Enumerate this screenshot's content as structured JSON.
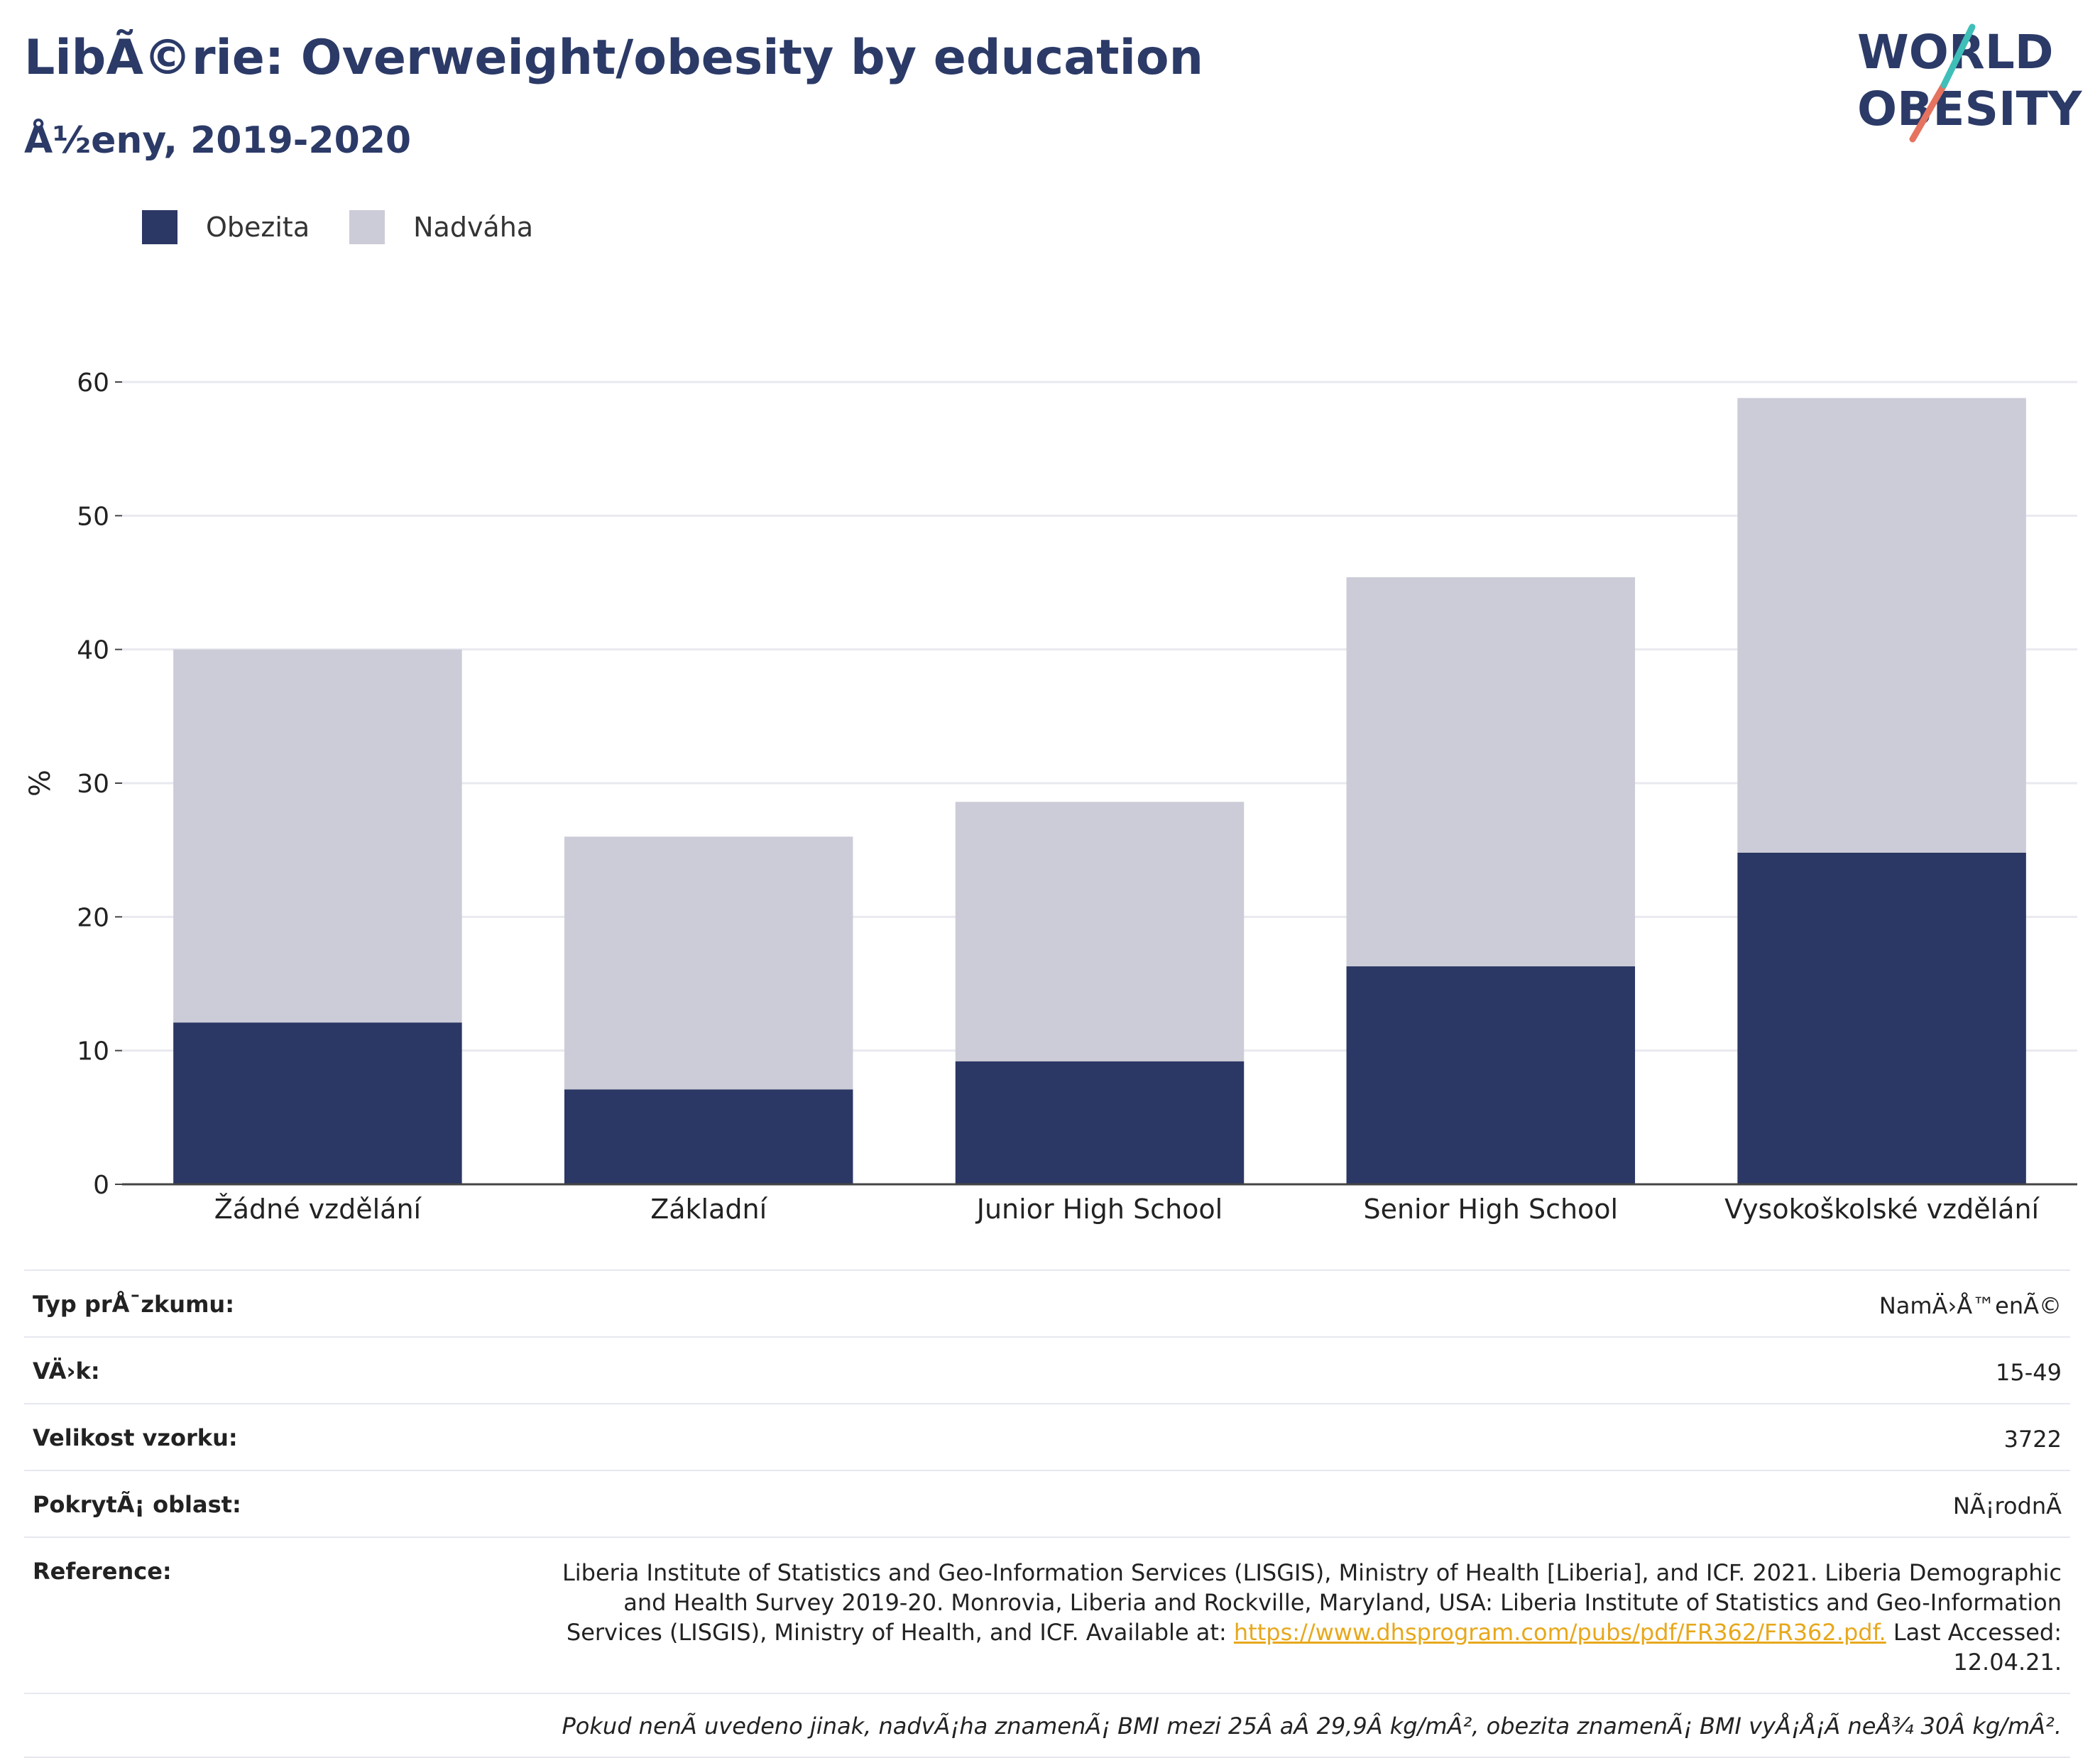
{
  "header": {
    "title": "LibÃ©rie: Overweight/obesity by education",
    "subtitle": "Å½eny, 2019-2020"
  },
  "logo": {
    "line1": "WORLD",
    "line2": "OBESITY"
  },
  "legend": [
    {
      "label": "Obezita",
      "color": "#2b3764"
    },
    {
      "label": "Nadváha",
      "color": "#cbccd7"
    }
  ],
  "chart_data": {
    "type": "bar",
    "stacked": true,
    "categories": [
      "Žádné vzdělání",
      "Základní",
      "Junior High School",
      "Senior High School",
      "Vysokoškolské vzdělání"
    ],
    "series": [
      {
        "name": "Obezita",
        "values": [
          12.1,
          7.1,
          9.2,
          16.3,
          24.8
        ],
        "color": "#2b3764"
      },
      {
        "name": "Nadváha",
        "values": [
          27.9,
          18.9,
          19.4,
          29.1,
          34.0
        ],
        "color": "#cbccd7"
      }
    ],
    "ylabel": "%",
    "ylim": [
      0,
      60
    ],
    "yticks": [
      0,
      10,
      20,
      30,
      40,
      50,
      60
    ],
    "grid": true,
    "legend_position": "top-left"
  },
  "info_table": [
    {
      "key": "Typ prÅ¯zkumu:",
      "value": "NamÄ›Å™enÃ©"
    },
    {
      "key": "VÄ›k:",
      "value": "15-49"
    },
    {
      "key": "Velikost vzorku:",
      "value": "3722"
    },
    {
      "key": "PokrytÃ¡ oblast:",
      "value": "NÃ¡rodnÃ"
    }
  ],
  "reference": {
    "key": "Reference:",
    "text_before": "Liberia Institute of Statistics and Geo-Information Services (LISGIS), Ministry of Health [Liberia], and ICF. 2021. Liberia Demographic and Health Survey 2019-20. Monrovia, Liberia and Rockville, Maryland, USA: Liberia Institute of Statistics and Geo-Information Services (LISGIS), Ministry of Health, and ICF. Available at: ",
    "link": "https://www.dhsprogram.com/pubs/pdf/FR362/FR362.pdf.",
    "text_after": " Last Accessed: 12.04.21."
  },
  "note": "Pokud nenÃ uvedeno jinak, nadvÃ¡ha znamenÃ¡ BMI mezi 25Â aÂ 29,9Â kg/mÂ², obezita znamenÃ¡ BMI vyÅ¡Å¡Ã neÅ¾ 30Â kg/mÂ²."
}
